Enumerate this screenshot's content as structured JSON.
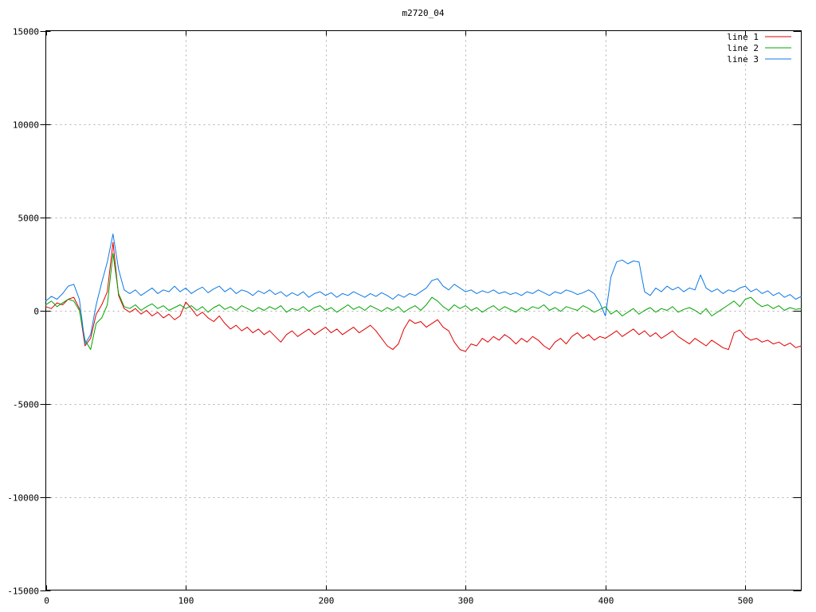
{
  "chart_data": {
    "type": "line",
    "title": "m2720_04",
    "xlabel": "",
    "ylabel": "",
    "xlim": [
      0,
      540
    ],
    "ylim": [
      -15000,
      15000
    ],
    "x_ticks": [
      0,
      100,
      200,
      300,
      400,
      500
    ],
    "y_ticks": [
      -15000,
      -10000,
      -5000,
      0,
      5000,
      10000,
      15000
    ],
    "grid": true,
    "grid_style": "dotted-gray",
    "legend_position": "top-right-inside",
    "background_color": "#ffffff",
    "border_color": "#000000",
    "grid_color": "#b0b0b0",
    "x_start": 0,
    "x_step": 4,
    "series": [
      {
        "name": "line 1",
        "color": "#e00000",
        "values": [
          200,
          100,
          400,
          300,
          600,
          700,
          100,
          -1900,
          -1500,
          -200,
          300,
          1000,
          3650,
          800,
          100,
          -100,
          100,
          -200,
          0,
          -300,
          -100,
          -400,
          -200,
          -500,
          -300,
          450,
          100,
          -300,
          -100,
          -400,
          -600,
          -300,
          -700,
          -1000,
          -800,
          -1100,
          -900,
          -1200,
          -1000,
          -1300,
          -1100,
          -1400,
          -1700,
          -1300,
          -1100,
          -1400,
          -1200,
          -1000,
          -1300,
          -1100,
          -900,
          -1200,
          -1000,
          -1300,
          -1100,
          -900,
          -1200,
          -1000,
          -800,
          -1100,
          -1500,
          -1900,
          -2100,
          -1800,
          -1000,
          -500,
          -700,
          -600,
          -900,
          -700,
          -500,
          -900,
          -1100,
          -1700,
          -2100,
          -2200,
          -1800,
          -1900,
          -1500,
          -1700,
          -1400,
          -1600,
          -1300,
          -1500,
          -1800,
          -1500,
          -1700,
          -1400,
          -1600,
          -1900,
          -2100,
          -1700,
          -1500,
          -1800,
          -1400,
          -1200,
          -1500,
          -1300,
          -1600,
          -1400,
          -1500,
          -1300,
          -1100,
          -1400,
          -1200,
          -1000,
          -1300,
          -1100,
          -1400,
          -1200,
          -1500,
          -1300,
          -1100,
          -1400,
          -1600,
          -1800,
          -1500,
          -1700,
          -1900,
          -1600,
          -1800,
          -2000,
          -2100,
          -1200,
          -1050,
          -1400,
          -1600,
          -1500,
          -1700,
          -1600,
          -1800,
          -1700,
          -1900,
          -1750,
          -2000,
          -1900
        ]
      },
      {
        "name": "line 2",
        "color": "#00a400",
        "values": [
          300,
          500,
          200,
          400,
          600,
          500,
          0,
          -1600,
          -2100,
          -700,
          -400,
          300,
          3050,
          900,
          200,
          100,
          300,
          0,
          200,
          350,
          100,
          250,
          0,
          150,
          300,
          100,
          250,
          0,
          200,
          -100,
          150,
          300,
          50,
          200,
          0,
          250,
          100,
          -50,
          150,
          0,
          200,
          50,
          250,
          -100,
          100,
          0,
          200,
          -50,
          150,
          250,
          0,
          150,
          -100,
          100,
          300,
          50,
          200,
          0,
          250,
          100,
          -50,
          150,
          0,
          200,
          -100,
          100,
          250,
          0,
          300,
          700,
          500,
          200,
          0,
          300,
          100,
          250,
          0,
          150,
          -100,
          100,
          250,
          0,
          200,
          50,
          -100,
          150,
          0,
          200,
          100,
          300,
          0,
          150,
          -50,
          200,
          100,
          0,
          250,
          100,
          -100,
          50,
          200,
          -200,
          0,
          -300,
          -100,
          100,
          -200,
          0,
          150,
          -100,
          100,
          0,
          200,
          -100,
          50,
          150,
          0,
          -200,
          100,
          -300,
          -100,
          100,
          300,
          500,
          200,
          600,
          700,
          400,
          200,
          300,
          100,
          250,
          0,
          150,
          50,
          100
        ]
      },
      {
        "name": "line 3",
        "color": "#0c79e6",
        "values": [
          500,
          750,
          600,
          900,
          1300,
          1400,
          600,
          -1800,
          -1300,
          300,
          1500,
          2600,
          4100,
          2200,
          1100,
          900,
          1100,
          800,
          1000,
          1200,
          900,
          1100,
          1000,
          1300,
          1000,
          1200,
          900,
          1100,
          1250,
          950,
          1150,
          1300,
          1000,
          1200,
          900,
          1100,
          1000,
          800,
          1050,
          900,
          1100,
          850,
          1000,
          750,
          950,
          800,
          1000,
          700,
          900,
          1000,
          800,
          950,
          700,
          900,
          800,
          1000,
          850,
          700,
          900,
          750,
          950,
          800,
          600,
          850,
          700,
          900,
          800,
          1000,
          1200,
          1600,
          1700,
          1300,
          1100,
          1400,
          1200,
          1000,
          1100,
          900,
          1050,
          950,
          1100,
          900,
          1000,
          850,
          950,
          800,
          1000,
          900,
          1100,
          950,
          800,
          1000,
          900,
          1100,
          1000,
          850,
          950,
          1100,
          900,
          400,
          -300,
          1800,
          2600,
          2700,
          2500,
          2650,
          2600,
          1000,
          800,
          1200,
          1000,
          1300,
          1100,
          1250,
          1000,
          1200,
          1100,
          1900,
          1200,
          1000,
          1150,
          900,
          1100,
          1000,
          1200,
          1300,
          1000,
          1150,
          900,
          1050,
          800,
          950,
          700,
          850,
          600,
          750
        ]
      }
    ]
  }
}
